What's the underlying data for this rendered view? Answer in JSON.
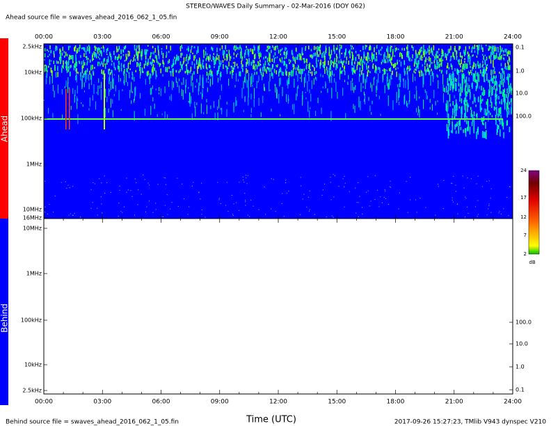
{
  "header": {
    "title": "STEREO/WAVES Daily Summary - 02-Mar-2016 (DOY 062)",
    "ahead_source": "Ahead source file = swaves_ahead_2016_062_1_05.fin"
  },
  "time_axis": {
    "top_ticks": [
      "00:00",
      "03:00",
      "06:00",
      "09:00",
      "12:00",
      "15:00",
      "18:00",
      "21:00",
      "24:00"
    ],
    "bottom_ticks": [
      "00:00",
      "03:00",
      "06:00",
      "09:00",
      "12:00",
      "15:00",
      "18:00",
      "21:00",
      "24:00"
    ],
    "label": "Time (UTC)"
  },
  "ahead_panel": {
    "label": "Ahead",
    "freq_ticks": [
      "2.5kHz",
      "10kHz",
      "100kHz",
      "1MHz",
      "10MHz",
      "16MHz"
    ],
    "right_ticks": [
      "0.1",
      "1.0",
      "10.0",
      "100.0"
    ]
  },
  "behind_panel": {
    "label": "Behind",
    "freq_ticks": [
      "10MHz",
      "1MHz",
      "100kHz",
      "10kHz",
      "2.5kHz"
    ],
    "right_ticks": [
      "100.0",
      "10.0",
      "1.0",
      "0.1"
    ]
  },
  "colorbar": {
    "ticks": [
      "24",
      "17",
      "12",
      "7",
      "2"
    ],
    "unit": "dB"
  },
  "footer": {
    "behind_source": "Behind source file = swaves_ahead_2016_062_1_05.fin",
    "timestamp": "2017-09-26 15:27:23, TMlib V943 dynspec V210"
  }
}
